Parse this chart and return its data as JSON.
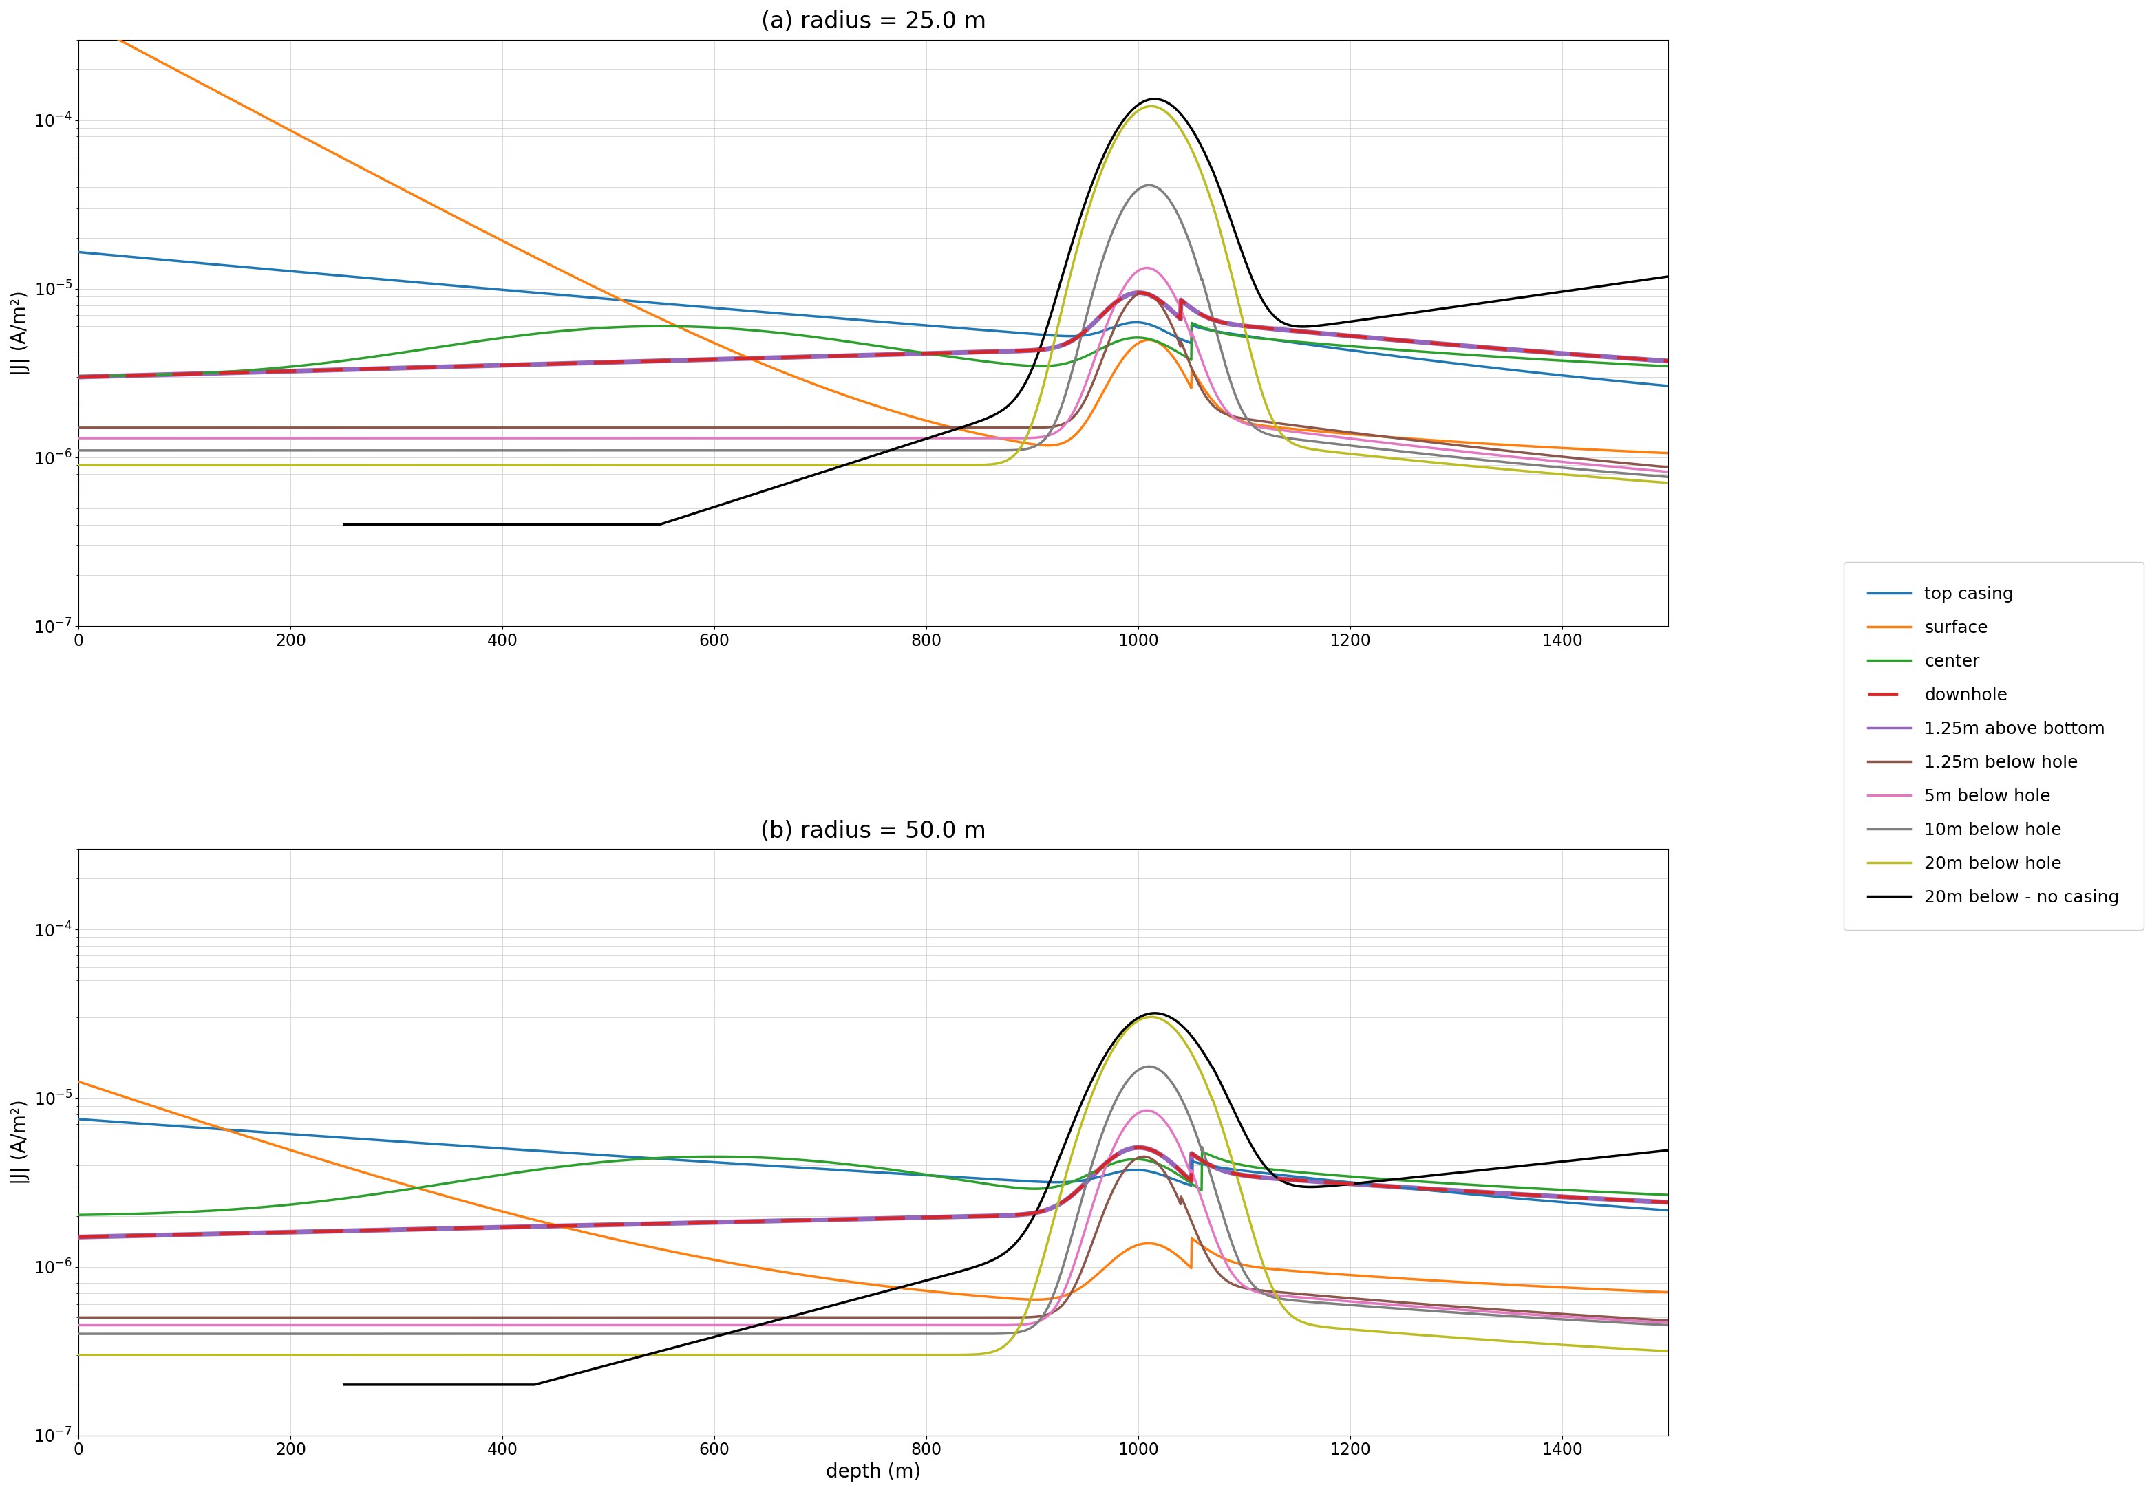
{
  "title_a": "(a) radius = 25.0 m",
  "title_b": "(b) radius = 50.0 m",
  "xlabel": "depth (m)",
  "ylabel": "|J| (A/m²)",
  "xlim": [
    0,
    1500
  ],
  "ylim": [
    1e-07,
    0.0003
  ],
  "colors": {
    "top_casing": "#1f77b4",
    "surface": "#ff7f0e",
    "center": "#2ca02c",
    "downhole_red": "#d62728",
    "downhole_pur": "#9467bd",
    "below_1": "#8c564b",
    "below_5": "#e377c2",
    "below_10": "#7f7f7f",
    "below_20": "#bcbd22",
    "no_casing": "#000000"
  },
  "labels": {
    "top_casing": "top casing",
    "surface": "surface",
    "center": "center",
    "downhole": "downhole",
    "above_bottom": "1.25m above bottom",
    "below_1": "1.25m below hole",
    "below_5": "5m below hole",
    "below_10": "10m below hole",
    "below_20": "20m below hole",
    "no_casing": "20m below - no casing"
  },
  "lw": 2.5,
  "lw_dh_pur": 5.0,
  "lw_dh_red": 3.5
}
